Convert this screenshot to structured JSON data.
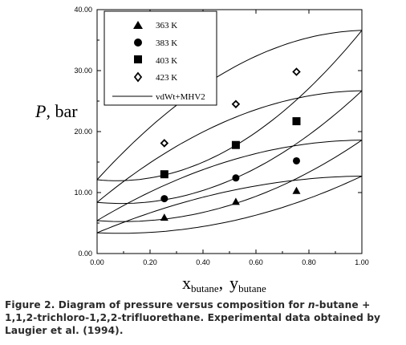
{
  "caption": {
    "label": "Figure 2.",
    "text_before": "Diagram of pressure versus composition for",
    "italic_term": "n",
    "text_after": "-butane + 1,1,2-trichloro-1,2,2-trifluorethane. Experimental data obtained by Laugier et al. (1994)."
  },
  "chart_data": {
    "type": "scatter",
    "xlabel": "x",
    "xlabel_sub": "butane",
    "xlabel_sep": ",",
    "xlabel2": "y",
    "xlabel2_sub": "butane",
    "ylabel": "P",
    "ylabel_unit": ", bar",
    "xlim": [
      0,
      1
    ],
    "ylim": [
      0,
      40
    ],
    "xticks": [
      "0.00",
      "0.20",
      "0.40",
      "0.60",
      "0.80",
      "1.00"
    ],
    "xtick_values": [
      0,
      0.2,
      0.4,
      0.6,
      0.8,
      1.0
    ],
    "yticks": [
      "0.00",
      "10.00",
      "20.00",
      "30.00",
      "40.00"
    ],
    "ytick_values": [
      0,
      10,
      20,
      30,
      40
    ],
    "grid": false,
    "legend_position": "top-left",
    "series": [
      {
        "name": "363 K",
        "marker": "triangle",
        "x": [
          0.254,
          0.524,
          0.753
        ],
        "y": [
          5.9,
          8.5,
          10.3
        ]
      },
      {
        "name": "383 K",
        "marker": "circle",
        "x": [
          0.254,
          0.524,
          0.753
        ],
        "y": [
          9.0,
          12.4,
          15.2
        ]
      },
      {
        "name": "403 K",
        "marker": "square",
        "x": [
          0.254,
          0.524,
          0.753
        ],
        "y": [
          13.0,
          17.8,
          21.7
        ]
      },
      {
        "name": "423 K",
        "marker": "open-diamond",
        "x": [
          0.254,
          0.524,
          0.753
        ],
        "y": [
          18.1,
          24.5,
          29.8
        ]
      }
    ],
    "model_curves": {
      "name": "vdWt+MHV2",
      "envelopes": [
        {
          "p0": 3.4,
          "p1": 12.7,
          "upper_bulge": 2.2,
          "lower_bulge": 2.8
        },
        {
          "p0": 5.4,
          "p1": 18.6,
          "upper_bulge": 3.2,
          "lower_bulge": 4.1
        },
        {
          "p0": 8.4,
          "p1": 26.7,
          "upper_bulge": 4.4,
          "lower_bulge": 5.6
        },
        {
          "p0": 12.1,
          "p1": 36.6,
          "upper_bulge": 5.8,
          "lower_bulge": 7.2
        }
      ]
    }
  }
}
